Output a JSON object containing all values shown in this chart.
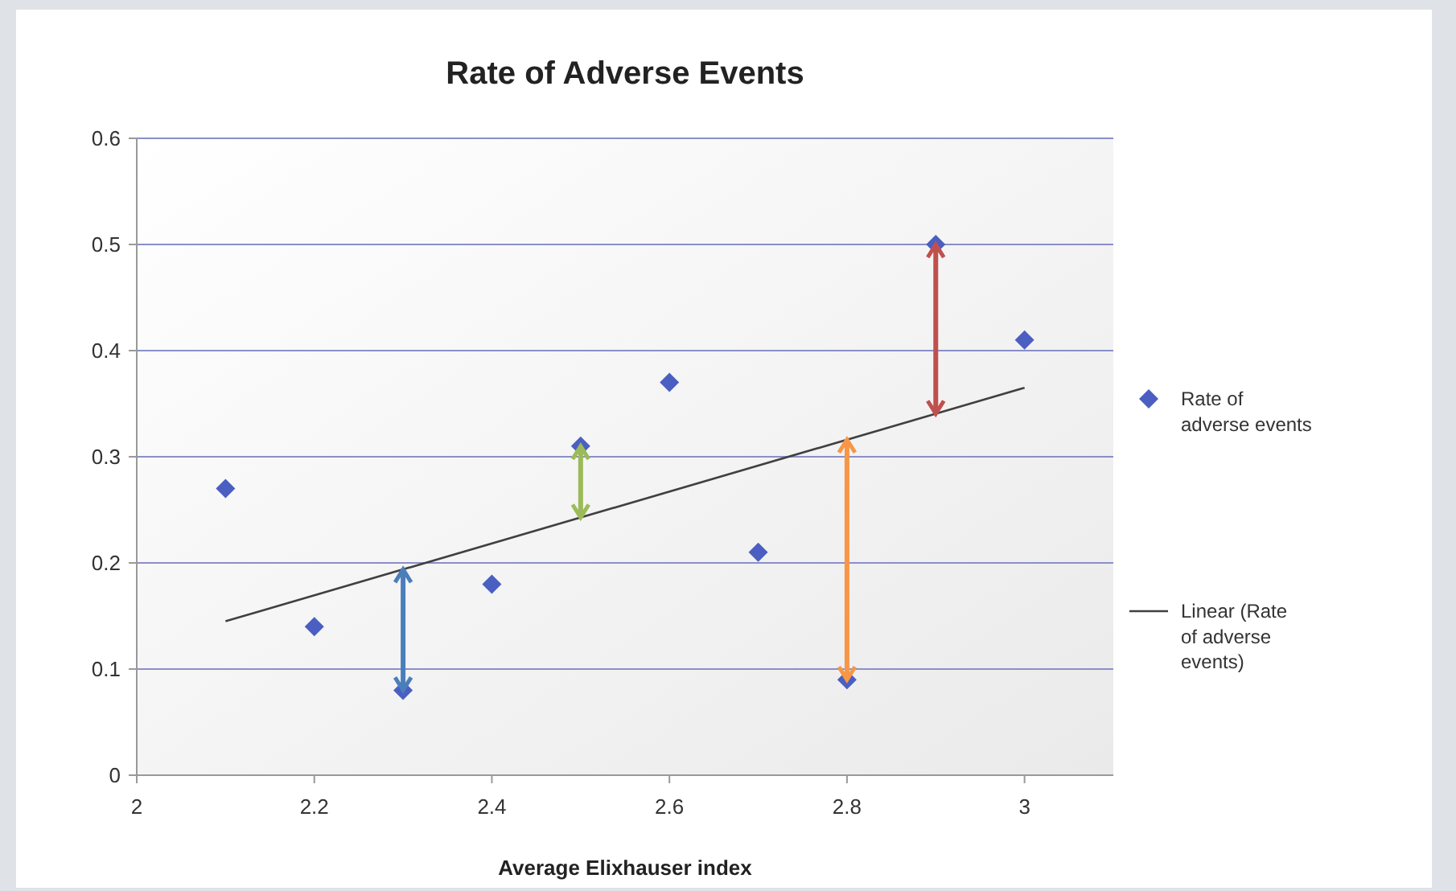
{
  "chart_data": {
    "type": "scatter",
    "title": "Rate of Adverse Events",
    "xlabel": "Average Elixhauser index",
    "xlim": [
      2,
      3.1
    ],
    "xticks": [
      2,
      2.2,
      2.4,
      2.6,
      2.8,
      3
    ],
    "ylim": [
      0,
      0.6
    ],
    "yticks": [
      0,
      0.1,
      0.2,
      0.3,
      0.4,
      0.5,
      0.6
    ],
    "grid": "y",
    "legend": "right",
    "series": [
      {
        "name": "Rate of adverse events",
        "marker": "diamond",
        "color": "#4a5fc1",
        "x": [
          2.1,
          2.2,
          2.3,
          2.4,
          2.5,
          2.6,
          2.7,
          2.8,
          2.9,
          3.0
        ],
        "values": [
          0.27,
          0.14,
          0.08,
          0.18,
          0.31,
          0.37,
          0.21,
          0.09,
          0.5,
          0.41
        ]
      },
      {
        "name": "Linear (Rate of adverse events)",
        "type": "line",
        "color": "#404040",
        "x": [
          2.1,
          3.0
        ],
        "values": [
          0.145,
          0.365
        ],
        "marker": "none",
        "line_style": "solid"
      }
    ]
  }
}
